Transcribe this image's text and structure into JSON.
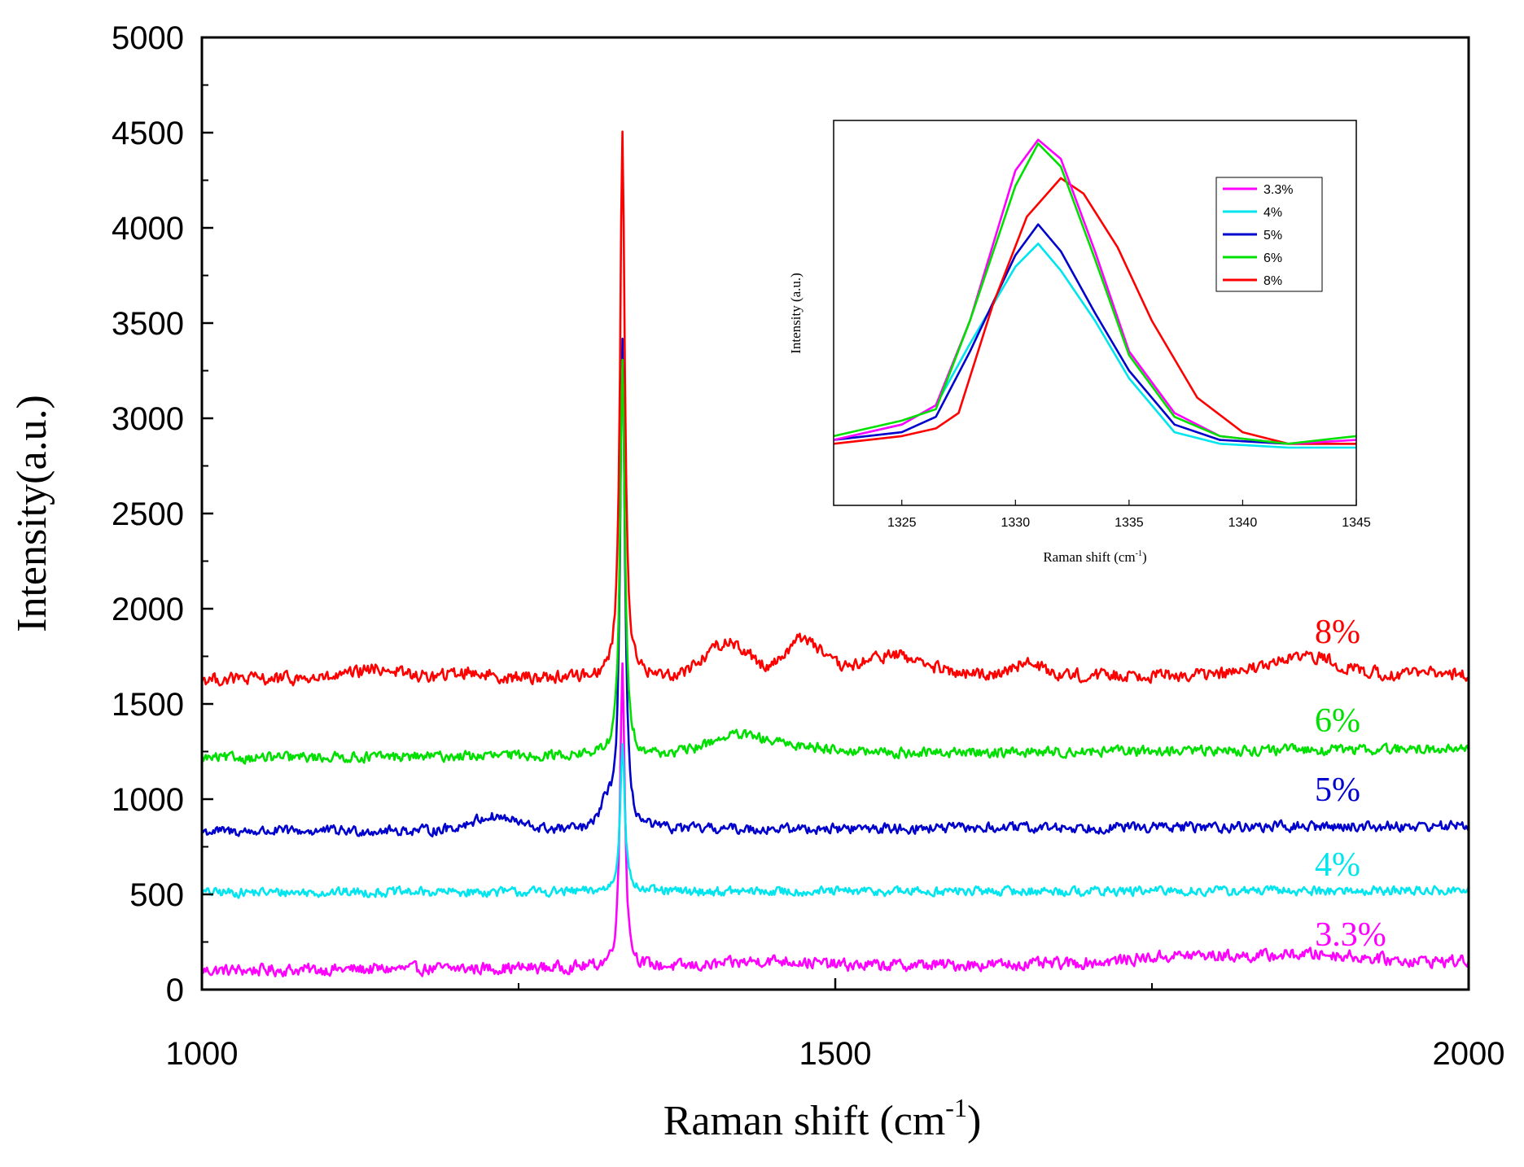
{
  "chart_data": [
    {
      "type": "line",
      "title": "",
      "xlabel": "Raman shift (cm",
      "xlabel_sup": "-1",
      "xlabel_close": ")",
      "ylabel": "Intensity(a.u.)",
      "xlim": [
        1000,
        2000
      ],
      "ylim": [
        0,
        5000
      ],
      "xticks": [
        "1000",
        "1500",
        "2000"
      ],
      "yticks": [
        "0",
        "500",
        "1000",
        "1500",
        "2000",
        "2500",
        "3000",
        "3500",
        "4000",
        "4500",
        "5000"
      ],
      "peak_position": 1332,
      "series": [
        {
          "name": "3.3%",
          "color": "#ff00ff",
          "baseline": 100,
          "peak": 1700,
          "noise": 28,
          "bumps": [
            [
              1450,
              40,
              30
            ],
            [
              1780,
              60,
              40
            ],
            [
              1880,
              50,
              40
            ]
          ],
          "baseline_end": 150
        },
        {
          "name": "4%",
          "color": "#00e5ee",
          "baseline": 510,
          "peak": 1300,
          "noise": 22,
          "bumps": [],
          "baseline_end": 520
        },
        {
          "name": "5%",
          "color": "#0000cc",
          "baseline": 830,
          "peak": 3400,
          "noise": 24,
          "bumps": [
            [
              1230,
              25,
              70
            ],
            [
              1320,
              8,
              120
            ]
          ],
          "baseline_end": 860
        },
        {
          "name": "6%",
          "color": "#00e000",
          "baseline": 1215,
          "peak": 3300,
          "noise": 24,
          "bumps": [
            [
              1420,
              30,
              90
            ],
            [
              1470,
              40,
              40
            ]
          ],
          "baseline_end": 1265
        },
        {
          "name": "8%",
          "color": "#ff0000",
          "baseline": 1630,
          "peak": 4520,
          "noise": 30,
          "bumps": [
            [
              1140,
              25,
              50
            ],
            [
              1210,
              20,
              30
            ],
            [
              1415,
              25,
              180
            ],
            [
              1475,
              20,
              200
            ],
            [
              1545,
              35,
              110
            ],
            [
              1650,
              20,
              60
            ],
            [
              1855,
              30,
              60
            ],
            [
              1885,
              25,
              60
            ]
          ],
          "baseline_end": 1660
        }
      ]
    },
    {
      "type": "line",
      "title": "",
      "xlabel": "Raman shift (cm",
      "xlabel_sup": "-1",
      "xlabel_close": ")",
      "ylabel": "Intensity (a.u.)",
      "xlim": [
        1322,
        1345
      ],
      "ylim": [
        0,
        1
      ],
      "xticks": [
        "1325",
        "1330",
        "1335",
        "1340",
        "1345"
      ],
      "legend_position": "top-right",
      "series": [
        {
          "name": "3.3%",
          "color": "#ff00ff",
          "x": [
            1322,
            1325,
            1326.5,
            1328,
            1330,
            1331,
            1332,
            1333.5,
            1335,
            1337,
            1339,
            1342,
            1345
          ],
          "y": [
            0.17,
            0.21,
            0.26,
            0.48,
            0.87,
            0.95,
            0.9,
            0.66,
            0.4,
            0.24,
            0.18,
            0.16,
            0.17
          ]
        },
        {
          "name": "4%",
          "color": "#00e5ee",
          "x": [
            1322,
            1325,
            1326.5,
            1328,
            1330,
            1331,
            1332,
            1333.5,
            1335,
            1337,
            1339,
            1342,
            1345
          ],
          "y": [
            0.17,
            0.21,
            0.26,
            0.42,
            0.62,
            0.68,
            0.61,
            0.48,
            0.33,
            0.19,
            0.16,
            0.15,
            0.15
          ]
        },
        {
          "name": "5%",
          "color": "#0000cc",
          "x": [
            1322,
            1325,
            1326.5,
            1328,
            1330,
            1331,
            1332,
            1333.5,
            1335,
            1337,
            1339,
            1342,
            1345
          ],
          "y": [
            0.17,
            0.19,
            0.23,
            0.4,
            0.65,
            0.73,
            0.66,
            0.5,
            0.35,
            0.21,
            0.17,
            0.16,
            0.16
          ]
        },
        {
          "name": "6%",
          "color": "#00e000",
          "x": [
            1322,
            1325,
            1326.5,
            1328,
            1330,
            1331,
            1332,
            1333.5,
            1335,
            1337,
            1339,
            1342,
            1345
          ],
          "y": [
            0.18,
            0.22,
            0.25,
            0.48,
            0.83,
            0.94,
            0.88,
            0.64,
            0.39,
            0.23,
            0.18,
            0.16,
            0.18
          ]
        },
        {
          "name": "8%",
          "color": "#ff0000",
          "x": [
            1322,
            1325,
            1326.5,
            1327.5,
            1329,
            1330.5,
            1332,
            1333,
            1334.5,
            1336,
            1338,
            1340,
            1342,
            1345
          ],
          "y": [
            0.16,
            0.18,
            0.2,
            0.24,
            0.52,
            0.75,
            0.85,
            0.81,
            0.67,
            0.48,
            0.28,
            0.19,
            0.16,
            0.16
          ]
        }
      ]
    }
  ]
}
